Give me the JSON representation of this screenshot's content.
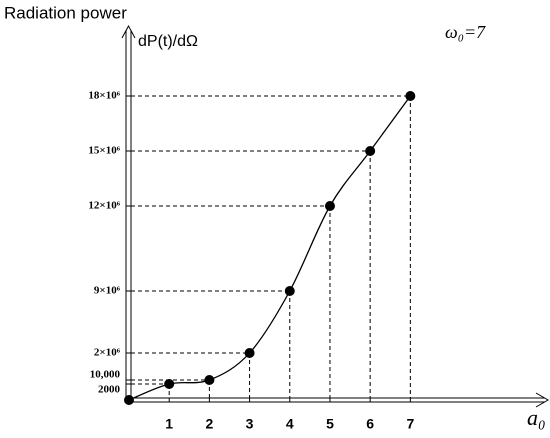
{
  "chart_data": {
    "type": "line",
    "title": "Radiation power",
    "y_label": "dP(t)/dΩ",
    "annotation": "ω₀=7",
    "x_label": "a₀",
    "x": [
      0,
      1,
      2,
      3,
      4,
      5,
      6,
      7
    ],
    "series": [
      {
        "color": "#000000",
        "values": [
          0,
          2000,
          10000,
          2000000,
          9000000,
          12000000,
          15000000,
          18000000
        ]
      }
    ],
    "xlim": [
      0,
      10.4
    ],
    "xticks": [
      1,
      2,
      3,
      4,
      5,
      6,
      7
    ],
    "ylim": [
      0,
      21000000
    ],
    "yticks": [
      2000,
      {
        "value": 10000,
        "label": "10,000"
      },
      {
        "value": 2000000,
        "label": "2×10⁶"
      },
      {
        "value": 9000000,
        "label": "9×10⁶"
      },
      {
        "value": 12000000,
        "label": "12×10⁶"
      },
      {
        "value": 15000000,
        "label": "15×10⁶"
      },
      {
        "value": 18000000,
        "label": "18×10⁶"
      }
    ],
    "grid": false
  }
}
